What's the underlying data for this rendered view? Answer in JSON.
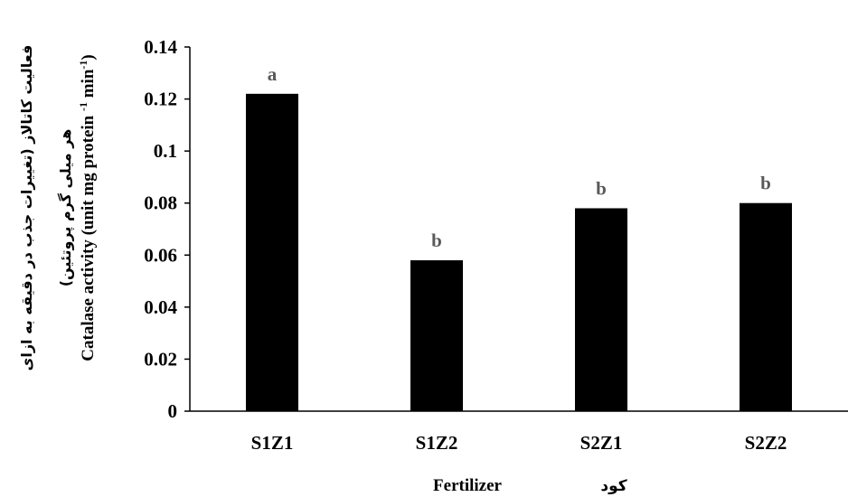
{
  "chart_data": {
    "type": "bar",
    "categories": [
      "S1Z1",
      "S1Z2",
      "S2Z1",
      "S2Z2"
    ],
    "values": [
      0.122,
      0.058,
      0.078,
      0.08
    ],
    "data_labels": [
      "a",
      "b",
      "b",
      "b"
    ],
    "ylim": [
      0,
      0.14
    ],
    "yticks": [
      "0",
      "0.02",
      "0.04",
      "0.06",
      "0.08",
      "0.1",
      "0.12",
      "0.14"
    ],
    "ylabel_fa_line1": "فعالیت کاتالاز (تغییرات جذب در دقیقه به ازای",
    "ylabel_fa_line2": "هر میلی گرم پروتئین)",
    "ylabel_en": "Catalase activity (unit mg protein -1 min-1)",
    "ylabel_en_main": "Catalase activity (unit mg protein ",
    "ylabel_en_sup1": "-1",
    "ylabel_en_mid": " min",
    "ylabel_en_sup2": "-1",
    "ylabel_en_end": ")",
    "xlabel_en": "Fertilizer",
    "xlabel_fa": "کود",
    "bar_color": "#000000",
    "data_label_color": "#595959",
    "grid": false
  }
}
